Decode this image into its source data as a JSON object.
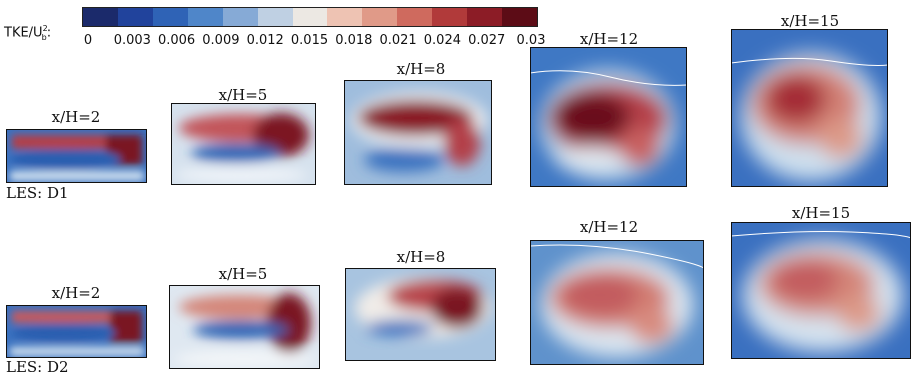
{
  "colorbar": {
    "label_main": "TKE/U",
    "label_sup": "2",
    "label_sub": "b",
    "label_colon": ":",
    "ticks": [
      "0",
      "0.003",
      "0.006",
      "0.009",
      "0.012",
      "0.015",
      "0.018",
      "0.021",
      "0.024",
      "0.027",
      "0.03"
    ],
    "colors": [
      "#1b2a6b",
      "#21439c",
      "#2f63b6",
      "#4f86c9",
      "#86aad6",
      "#bfd0e3",
      "#ece8e3",
      "#eec3b3",
      "#e09a88",
      "#cf6a5e",
      "#b13a3a",
      "#8c1c26",
      "#5c0c16"
    ]
  },
  "rows": [
    {
      "row_label": "LES: D1",
      "panels": [
        {
          "label": "x/H=2"
        },
        {
          "label": "x/H=5"
        },
        {
          "label": "x/H=8"
        },
        {
          "label": "x/H=12"
        },
        {
          "label": "x/H=15"
        }
      ]
    },
    {
      "row_label": "LES: D2",
      "panels": [
        {
          "label": "x/H=2"
        },
        {
          "label": "x/H=5"
        },
        {
          "label": "x/H=8"
        },
        {
          "label": "x/H=12"
        },
        {
          "label": "x/H=15"
        }
      ]
    }
  ]
}
